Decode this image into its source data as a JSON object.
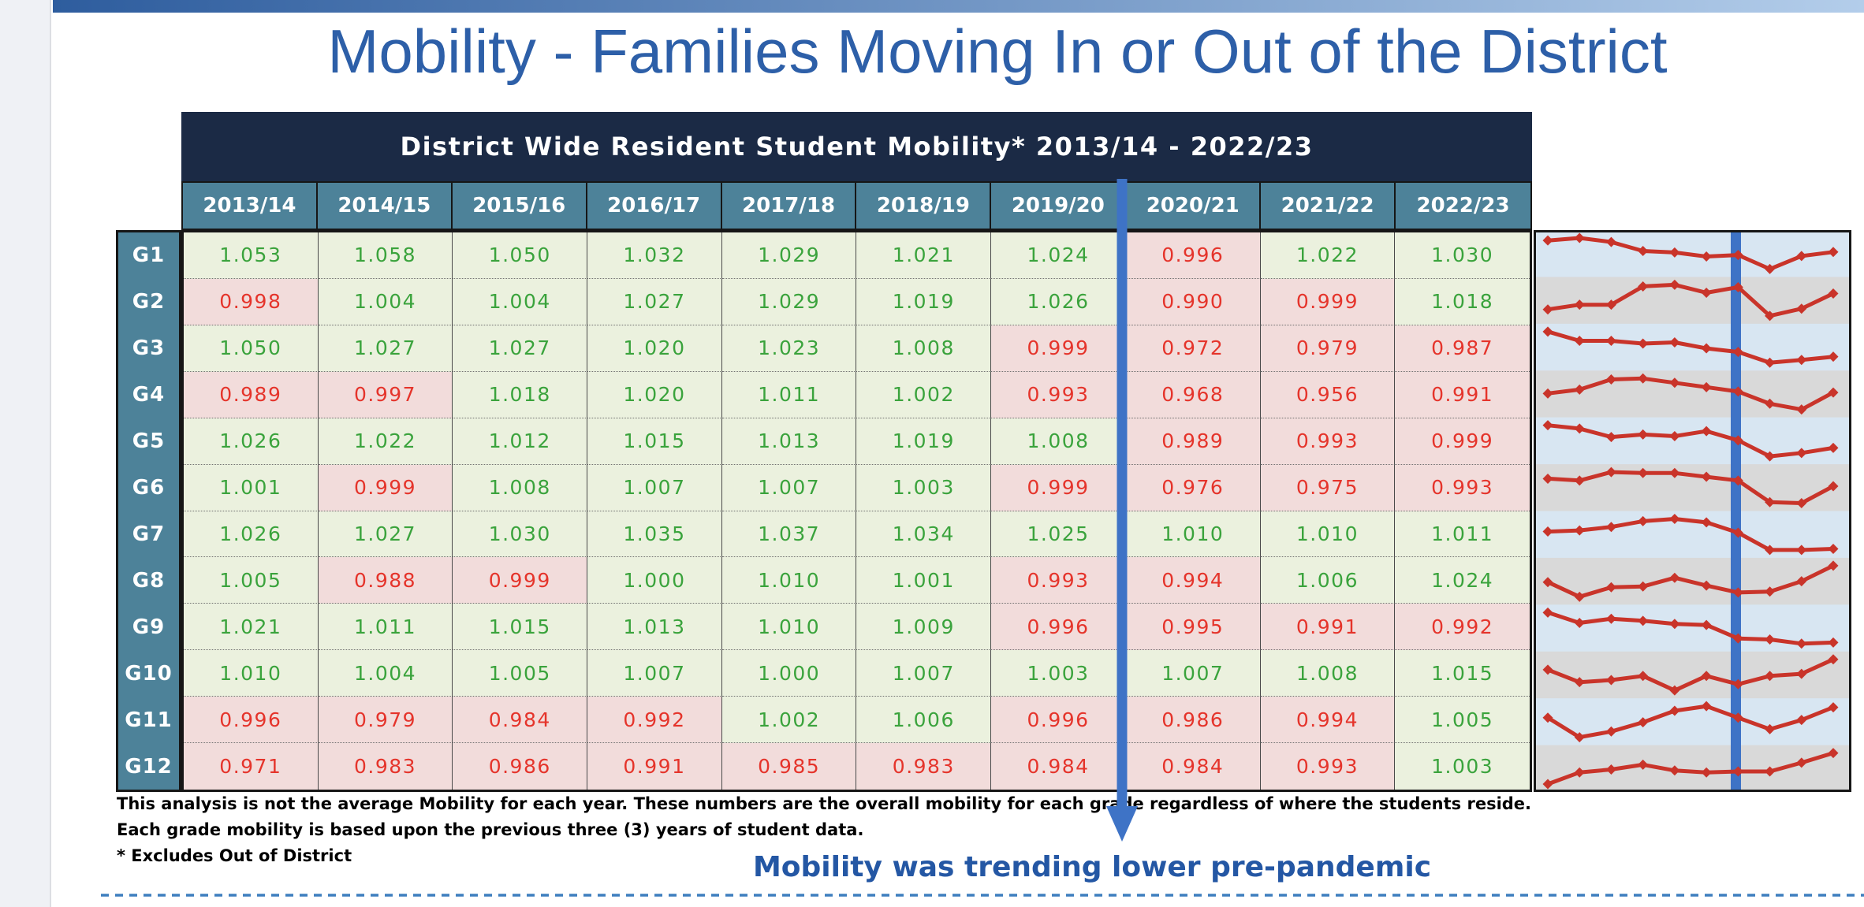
{
  "page": {
    "title": "Mobility - Families Moving In or Out of the District",
    "callout": "Mobility was trending lower pre-pandemic",
    "footnotes": [
      "This analysis is not the average Mobility for each year.  These numbers are the overall mobility for each grade regardless of where the students reside.",
      "Each grade mobility is based upon the previous three (3) years of student data.",
      "* Excludes Out of District"
    ]
  },
  "table": {
    "header_title": "District Wide Resident Student Mobility* 2013/14 - 2022/23",
    "green_threshold": 1.0,
    "value_precision": 3
  },
  "chart_data": {
    "type": "line",
    "title": "Per-grade mobility sparklines, one row per grade (red line, diamond markers), blue divider after 2019/20",
    "x": [
      "2013/14",
      "2014/15",
      "2015/16",
      "2016/17",
      "2017/18",
      "2018/19",
      "2019/20",
      "2020/21",
      "2021/22",
      "2022/23"
    ],
    "series": [
      {
        "name": "G1",
        "values": [
          "1.053",
          "1.058",
          "1.050",
          "1.032",
          "1.029",
          "1.021",
          "1.024",
          "0.996",
          "1.022",
          "1.030"
        ]
      },
      {
        "name": "G2",
        "values": [
          "0.998",
          "1.004",
          "1.004",
          "1.027",
          "1.029",
          "1.019",
          "1.026",
          "0.990",
          "0.999",
          "1.018"
        ]
      },
      {
        "name": "G3",
        "values": [
          "1.050",
          "1.027",
          "1.027",
          "1.020",
          "1.023",
          "1.008",
          "0.999",
          "0.972",
          "0.979",
          "0.987"
        ]
      },
      {
        "name": "G4",
        "values": [
          "0.989",
          "0.997",
          "1.018",
          "1.020",
          "1.011",
          "1.002",
          "0.993",
          "0.968",
          "0.956",
          "0.991"
        ]
      },
      {
        "name": "G5",
        "values": [
          "1.026",
          "1.022",
          "1.012",
          "1.015",
          "1.013",
          "1.019",
          "1.008",
          "0.989",
          "0.993",
          "0.999"
        ]
      },
      {
        "name": "G6",
        "values": [
          "1.001",
          "0.999",
          "1.008",
          "1.007",
          "1.007",
          "1.003",
          "0.999",
          "0.976",
          "0.975",
          "0.993"
        ]
      },
      {
        "name": "G7",
        "values": [
          "1.026",
          "1.027",
          "1.030",
          "1.035",
          "1.037",
          "1.034",
          "1.025",
          "1.010",
          "1.010",
          "1.011"
        ]
      },
      {
        "name": "G8",
        "values": [
          "1.005",
          "0.988",
          "0.999",
          "1.000",
          "1.010",
          "1.001",
          "0.993",
          "0.994",
          "1.006",
          "1.024"
        ]
      },
      {
        "name": "G9",
        "values": [
          "1.021",
          "1.011",
          "1.015",
          "1.013",
          "1.010",
          "1.009",
          "0.996",
          "0.995",
          "0.991",
          "0.992"
        ]
      },
      {
        "name": "G10",
        "values": [
          "1.010",
          "1.004",
          "1.005",
          "1.007",
          "1.000",
          "1.007",
          "1.003",
          "1.007",
          "1.008",
          "1.015"
        ]
      },
      {
        "name": "G11",
        "values": [
          "0.996",
          "0.979",
          "0.984",
          "0.992",
          "1.002",
          "1.006",
          "0.996",
          "0.986",
          "0.994",
          "1.005"
        ]
      },
      {
        "name": "G12",
        "values": [
          "0.971",
          "0.983",
          "0.986",
          "0.991",
          "0.985",
          "0.983",
          "0.984",
          "0.984",
          "0.993",
          "1.003"
        ]
      }
    ],
    "divider_after_x": "2019/20",
    "marker": "diamond",
    "ylim": "per-row min/max normalization",
    "legend_position": "none"
  },
  "colors": {
    "margin_gray": "#eff1f5",
    "bar_left": "#2e5d9e",
    "bar_right": "#b3cdea",
    "title_blue": "#2d5fa8",
    "navy": "#1b2a45",
    "teal": "#4d8299",
    "green_bg": "#ebf1de",
    "red_bg": "#f2dcdb",
    "green_tx": "#3aa33c",
    "red_tx": "#e5342b",
    "arrow_blue": "#3e73c6",
    "spark_line": "#c9342a",
    "band_blue": "#d8e6f2",
    "band_gray": "#d9d9d9",
    "callout_blue": "#2457a4",
    "dash_blue": "#3f7fbf"
  }
}
